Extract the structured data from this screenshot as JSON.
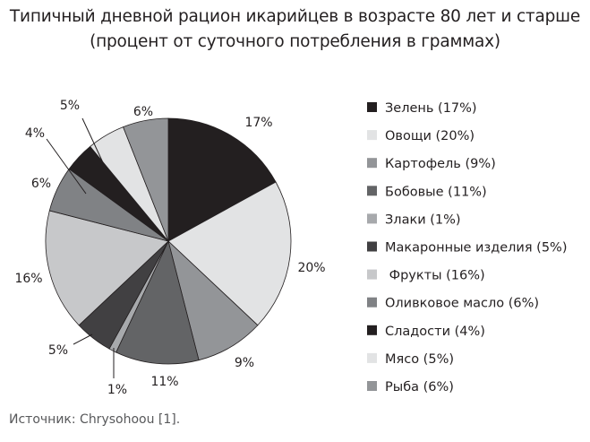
{
  "chart_data": {
    "type": "pie",
    "title": "Типичный дневной рацион икарийцев в возрасте 80 лет и старше",
    "subtitle": "(процент от суточного потребления в граммах)",
    "legend_position": "right",
    "slices": [
      {
        "name": "Зелень",
        "legend": "Зелень (17%)",
        "value": 17,
        "label": "17%",
        "color": "#231f20"
      },
      {
        "name": "Овощи",
        "legend": "Овощи (20%)",
        "value": 20,
        "label": "20%",
        "color": "#e2e3e4"
      },
      {
        "name": "Картофель",
        "legend": "Картофель (9%)",
        "value": 9,
        "label": "9%",
        "color": "#939598"
      },
      {
        "name": "Бобовые",
        "legend": "Бобовые (11%)",
        "value": 11,
        "label": "11%",
        "color": "#636466"
      },
      {
        "name": "Злаки",
        "legend": "Злаки (1%)",
        "value": 1,
        "label": "1%",
        "color": "#a7a9ac"
      },
      {
        "name": "Макаронные изделия",
        "legend": "Макаронные изделия (5%)",
        "value": 5,
        "label": "5%",
        "color": "#414042"
      },
      {
        "name": "Фрукты",
        "legend": " Фрукты (16%)",
        "value": 16,
        "label": "16%",
        "color": "#c7c8ca"
      },
      {
        "name": "Оливковое масло",
        "legend": "Оливковое масло (6%)",
        "value": 6,
        "label": "6%",
        "color": "#808285"
      },
      {
        "name": "Сладости",
        "legend": "Сладости (4%)",
        "value": 4,
        "label": "4%",
        "color": "#231f20"
      },
      {
        "name": "Мясо",
        "legend": "Мясо (5%)",
        "value": 5,
        "label": "5%",
        "color": "#e2e3e4"
      },
      {
        "name": "Рыба",
        "legend": "Рыба (6%)",
        "value": 6,
        "label": "6%",
        "color": "#939598"
      }
    ]
  },
  "source": "Источник: Chrysohoou [1]."
}
